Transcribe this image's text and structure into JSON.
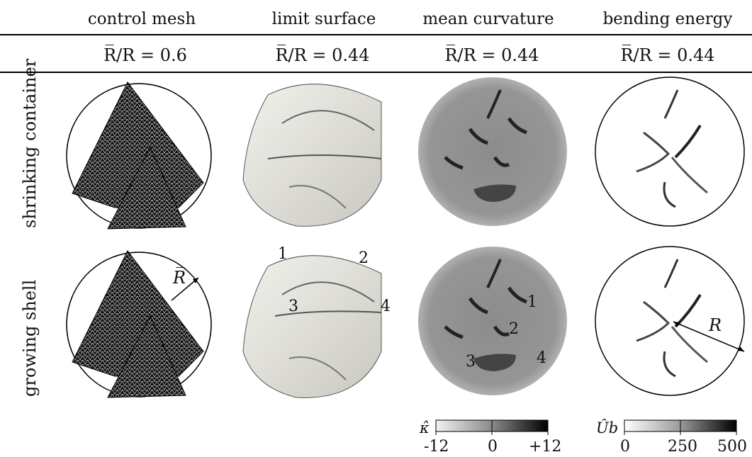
{
  "columns": [
    "control mesh",
    "limit surface",
    "mean curvature",
    "bending energy"
  ],
  "ratios": {
    "mesh": "R̅/R = 0.6",
    "limit": "R̅/R = 0.44",
    "curv": "R̅/R = 0.44",
    "energy": "R̅/R = 0.44"
  },
  "rows": [
    "shrinking container",
    "growing shell"
  ],
  "annotations": {
    "rbar": "R̅",
    "r": "R",
    "limit_pts": [
      "1",
      "2",
      "3",
      "4"
    ],
    "curv_pts": [
      "1",
      "2",
      "3",
      "4"
    ]
  },
  "colorbars": {
    "kappa": {
      "label": "κ̂",
      "ticks": [
        "-12",
        "0",
        "+12"
      ],
      "colors": [
        "#f2f2f2",
        "#000000"
      ]
    },
    "ub": {
      "label": "Ûb",
      "ticks": [
        "0",
        "250",
        "500"
      ],
      "colors": [
        "#ffffff",
        "#000000"
      ]
    }
  }
}
